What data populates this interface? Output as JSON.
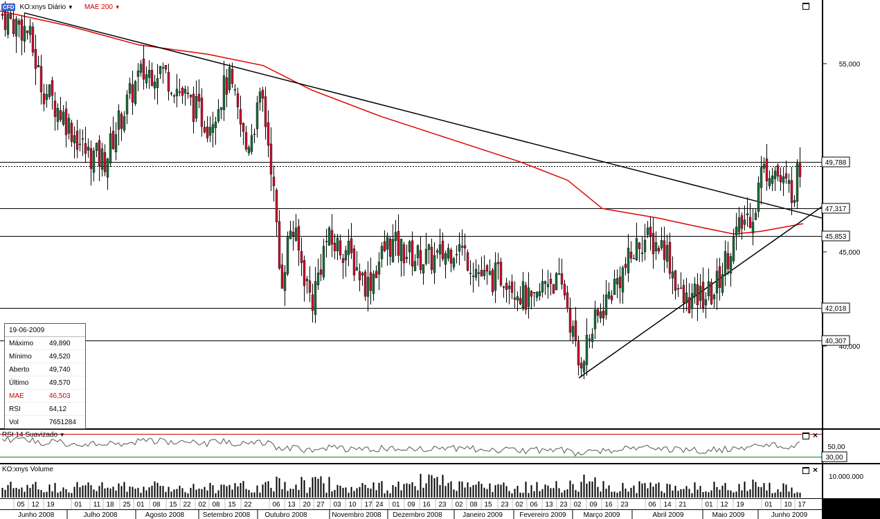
{
  "toolbar": {
    "cfd": "CFD",
    "symbol": "KO:xnys Diário",
    "indicator": "MAE 200"
  },
  "info": {
    "date": "19-06-2009",
    "rows": [
      {
        "k": "Máximo",
        "v": "49,890"
      },
      {
        "k": "Mínimo",
        "v": "49,520"
      },
      {
        "k": "Aberto",
        "v": "49,740"
      },
      {
        "k": "Último",
        "v": "49,570"
      },
      {
        "k": "MAE",
        "v": "46,503"
      },
      {
        "k": "RSI",
        "v": "64,12"
      },
      {
        "k": "Vol",
        "v": "7651284"
      }
    ]
  },
  "rsi_label": "RSI 14 Suavizado",
  "volume_label": "KO:xnys Volume",
  "colors": {
    "up": "#1e6b3a",
    "down": "#c8102e",
    "mae": "#e00000",
    "bg": "#ffffff"
  },
  "chart_data": {
    "type": "candlestick",
    "price_axis": {
      "ticks": [
        "55,000",
        "45,000",
        "40,000"
      ],
      "tick_values": [
        55,
        45,
        40
      ]
    },
    "hlines": [
      {
        "value": 49.788,
        "label": "49,788",
        "style": "solid"
      },
      {
        "value": 49.57,
        "style": "dotted"
      },
      {
        "value": 47.317,
        "label": "47,317",
        "style": "solid"
      },
      {
        "value": 45.853,
        "label": "45,853",
        "style": "solid"
      },
      {
        "value": 42.018,
        "label": "42,018",
        "style": "solid"
      },
      {
        "value": 40.307,
        "label": "40,307",
        "style": "solid"
      }
    ],
    "rsi_axis": {
      "ticks": [
        "50,00",
        "30,00"
      ]
    },
    "volume_axis": {
      "ticks": [
        "10.000.000"
      ]
    },
    "x_days": [
      "05",
      "12",
      "19",
      "01",
      "11",
      "18",
      "25",
      "01",
      "08",
      "15",
      "22",
      "02",
      "08",
      "15",
      "22",
      "06",
      "13",
      "20",
      "27",
      "03",
      "10",
      "17",
      "24",
      "01",
      "09",
      "16",
      "23",
      "02",
      "08",
      "15",
      "23",
      "02",
      "06",
      "13",
      "23",
      "02",
      "09",
      "16",
      "23",
      "06",
      "14",
      "21",
      "01",
      "12",
      "19",
      "01",
      "10",
      "17"
    ],
    "x_months": [
      "Junho 2008",
      "Julho 2008",
      "Agosto 2008",
      "Setembro 2008",
      "Outubro 2008",
      "Novembro 2008",
      "Dezembro 2008",
      "Janeiro 2009",
      "Fevereiro 2009",
      "Março 2009",
      "Abril 2009",
      "Maio 2009",
      "Junho 2009"
    ]
  }
}
